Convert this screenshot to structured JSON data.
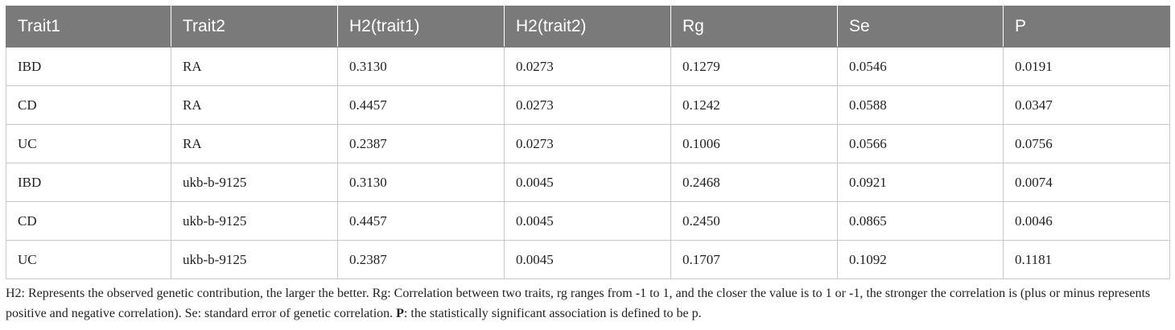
{
  "table": {
    "headers": [
      "Trait1",
      "Trait2",
      "H2(trait1)",
      "H2(trait2)",
      "Rg",
      "Se",
      "P"
    ],
    "rows": [
      [
        "IBD",
        "RA",
        "0.3130",
        "0.0273",
        "0.1279",
        "0.0546",
        "0.0191"
      ],
      [
        "CD",
        "RA",
        "0.4457",
        "0.0273",
        "0.1242",
        "0.0588",
        "0.0347"
      ],
      [
        "UC",
        "RA",
        "0.2387",
        "0.0273",
        "0.1006",
        "0.0566",
        "0.0756"
      ],
      [
        "IBD",
        "ukb-b-9125",
        "0.3130",
        "0.0045",
        "0.2468",
        "0.0921",
        "0.0074"
      ],
      [
        "CD",
        "ukb-b-9125",
        "0.4457",
        "0.0045",
        "0.2450",
        "0.0865",
        "0.0046"
      ],
      [
        "UC",
        "ukb-b-9125",
        "0.2387",
        "0.0045",
        "0.1707",
        "0.1092",
        "0.1181"
      ]
    ]
  },
  "footnote": {
    "part1": "H2: Represents the observed genetic contribution, the larger the better. Rg: Correlation between two traits, rg ranges from -1 to 1, and the closer the value is to 1 or -1, the stronger the correlation is (plus or minus represents positive and negative correlation). Se: standard error of genetic correlation. ",
    "bold_label": "P",
    "part2": ": the statistically significant association is defined to be p."
  },
  "colors": {
    "header_bg": "#7a7a7a",
    "header_text": "#ffffff",
    "grid_line": "#c9c9c9"
  }
}
